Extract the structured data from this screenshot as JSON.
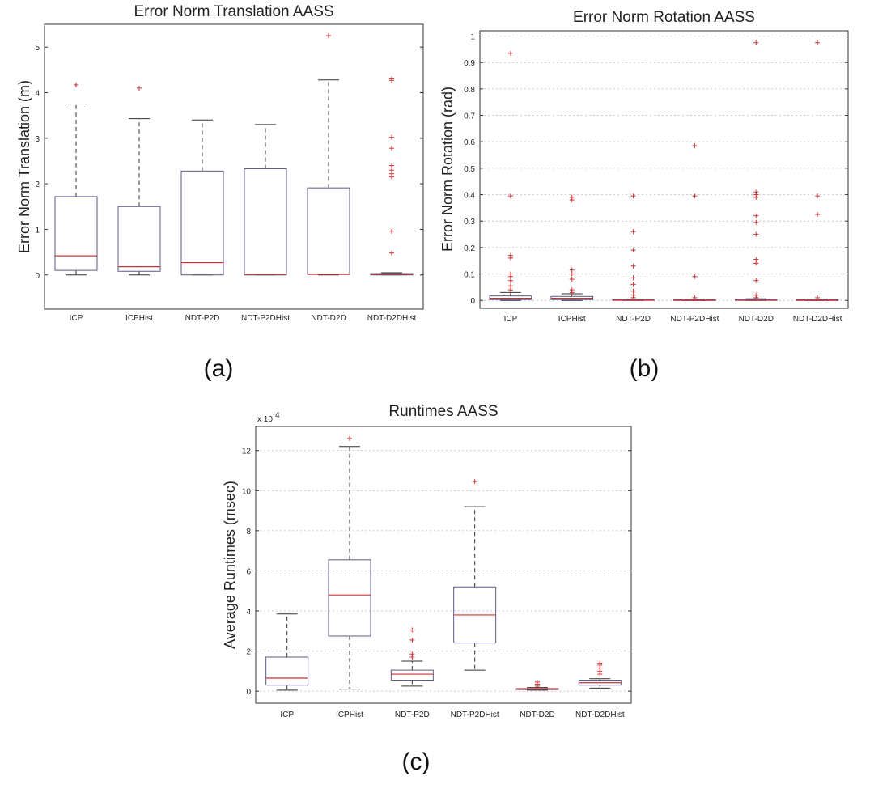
{
  "panels": [
    {
      "label": "(a)"
    },
    {
      "label": "(b)"
    },
    {
      "label": "(c)"
    }
  ],
  "chart_data": [
    {
      "type": "box",
      "title": "Error Norm Translation AASS",
      "ylabel": "Error Norm Translation (m)",
      "ylim": [
        -0.75,
        5.5
      ],
      "yticks": [
        0,
        1,
        2,
        3,
        4,
        5
      ],
      "ytick_labels": [
        "0",
        "1",
        "2",
        "3",
        "4",
        "5"
      ],
      "exponent_label": "",
      "grid": false,
      "categories": [
        "ICP",
        "ICPHist",
        "NDT-P2D",
        "NDT-P2DHist",
        "NDT-D2D",
        "NDT-D2DHist"
      ],
      "boxes": [
        {
          "whisker_low": 0.0,
          "q1": 0.1,
          "median": 0.42,
          "q3": 1.72,
          "whisker_high": 3.75,
          "outliers": [
            4.17
          ]
        },
        {
          "whisker_low": 0.0,
          "q1": 0.08,
          "median": 0.18,
          "q3": 1.5,
          "whisker_high": 3.43,
          "outliers": [
            4.1
          ]
        },
        {
          "whisker_low": 0.0,
          "q1": 0.0,
          "median": 0.27,
          "q3": 2.28,
          "whisker_high": 3.4,
          "outliers": []
        },
        {
          "whisker_low": 0.0,
          "q1": 0.0,
          "median": 0.01,
          "q3": 2.33,
          "whisker_high": 3.3,
          "outliers": []
        },
        {
          "whisker_low": 0.0,
          "q1": 0.01,
          "median": 0.02,
          "q3": 1.91,
          "whisker_high": 4.28,
          "outliers": [
            5.25
          ]
        },
        {
          "whisker_low": 0.0,
          "q1": 0.0,
          "median": 0.01,
          "q3": 0.03,
          "whisker_high": 0.05,
          "outliers": [
            0.48,
            0.96,
            2.15,
            2.22,
            2.3,
            2.4,
            2.78,
            3.02,
            4.27,
            4.3
          ]
        }
      ]
    },
    {
      "type": "box",
      "title": "Error Norm Rotation AASS",
      "ylabel": "Error Norm Rotation (rad)",
      "ylim": [
        -0.03,
        1.02
      ],
      "yticks": [
        0,
        0.1,
        0.2,
        0.3,
        0.4,
        0.5,
        0.6,
        0.7,
        0.8,
        0.9,
        1
      ],
      "ytick_labels": [
        "0",
        "0.1",
        "0.2",
        "0.3",
        "0.4",
        "0.5",
        "0.6",
        "0.7",
        "0.8",
        "0.9",
        "1"
      ],
      "exponent_label": "",
      "grid": true,
      "categories": [
        "ICP",
        "ICPHist",
        "NDT-P2D",
        "NDT-P2DHist",
        "NDT-D2D",
        "NDT-D2DHist"
      ],
      "boxes": [
        {
          "whisker_low": 0.0,
          "q1": 0.003,
          "median": 0.008,
          "q3": 0.017,
          "whisker_high": 0.03,
          "outliers": [
            0.04,
            0.055,
            0.075,
            0.09,
            0.1,
            0.16,
            0.17,
            0.395,
            0.935
          ]
        },
        {
          "whisker_low": 0.0,
          "q1": 0.003,
          "median": 0.008,
          "q3": 0.015,
          "whisker_high": 0.025,
          "outliers": [
            0.03,
            0.04,
            0.08,
            0.1,
            0.115,
            0.38,
            0.39
          ]
        },
        {
          "whisker_low": 0.0,
          "q1": 0.0,
          "median": 0.001,
          "q3": 0.003,
          "whisker_high": 0.005,
          "outliers": [
            0.01,
            0.02,
            0.035,
            0.06,
            0.085,
            0.13,
            0.19,
            0.26,
            0.395
          ]
        },
        {
          "whisker_low": 0.0,
          "q1": 0.0,
          "median": 0.001,
          "q3": 0.002,
          "whisker_high": 0.004,
          "outliers": [
            0.01,
            0.09,
            0.395,
            0.585
          ]
        },
        {
          "whisker_low": 0.0,
          "q1": 0.0,
          "median": 0.002,
          "q3": 0.004,
          "whisker_high": 0.006,
          "outliers": [
            0.01,
            0.02,
            0.075,
            0.14,
            0.155,
            0.25,
            0.295,
            0.32,
            0.39,
            0.4,
            0.41,
            0.975
          ]
        },
        {
          "whisker_low": 0.0,
          "q1": 0.0,
          "median": 0.001,
          "q3": 0.002,
          "whisker_high": 0.004,
          "outliers": [
            0.01,
            0.325,
            0.395,
            0.975
          ]
        }
      ]
    },
    {
      "type": "box",
      "title": "Runtimes AASS",
      "ylabel": "Average Runtimes (msec)",
      "ylim": [
        -0.6,
        13.2
      ],
      "yticks": [
        0,
        2,
        4,
        6,
        8,
        10,
        12
      ],
      "ytick_labels": [
        "0",
        "2",
        "4",
        "6",
        "8",
        "10",
        "12"
      ],
      "exponent_label": "x 10",
      "exponent_power": "4",
      "grid": true,
      "categories": [
        "ICP",
        "ICPHist",
        "NDT-P2D",
        "NDT-P2DHist",
        "NDT-D2D",
        "NDT-D2DHist"
      ],
      "boxes": [
        {
          "whisker_low": 0.05,
          "q1": 0.3,
          "median": 0.65,
          "q3": 1.7,
          "whisker_high": 3.85,
          "outliers": []
        },
        {
          "whisker_low": 0.1,
          "q1": 2.75,
          "median": 4.8,
          "q3": 6.55,
          "whisker_high": 12.2,
          "outliers": [
            12.6
          ]
        },
        {
          "whisker_low": 0.25,
          "q1": 0.55,
          "median": 0.85,
          "q3": 1.05,
          "whisker_high": 1.5,
          "outliers": [
            1.7,
            1.85,
            2.55,
            3.05
          ]
        },
        {
          "whisker_low": 1.05,
          "q1": 2.4,
          "median": 3.8,
          "q3": 5.2,
          "whisker_high": 9.2,
          "outliers": [
            10.45
          ]
        },
        {
          "whisker_low": 0.05,
          "q1": 0.08,
          "median": 0.1,
          "q3": 0.13,
          "whisker_high": 0.18,
          "outliers": [
            0.25,
            0.35,
            0.45
          ]
        },
        {
          "whisker_low": 0.15,
          "q1": 0.3,
          "median": 0.42,
          "q3": 0.55,
          "whisker_high": 0.62,
          "outliers": [
            0.85,
            1.0,
            1.15,
            1.3,
            1.4
          ]
        }
      ]
    }
  ]
}
